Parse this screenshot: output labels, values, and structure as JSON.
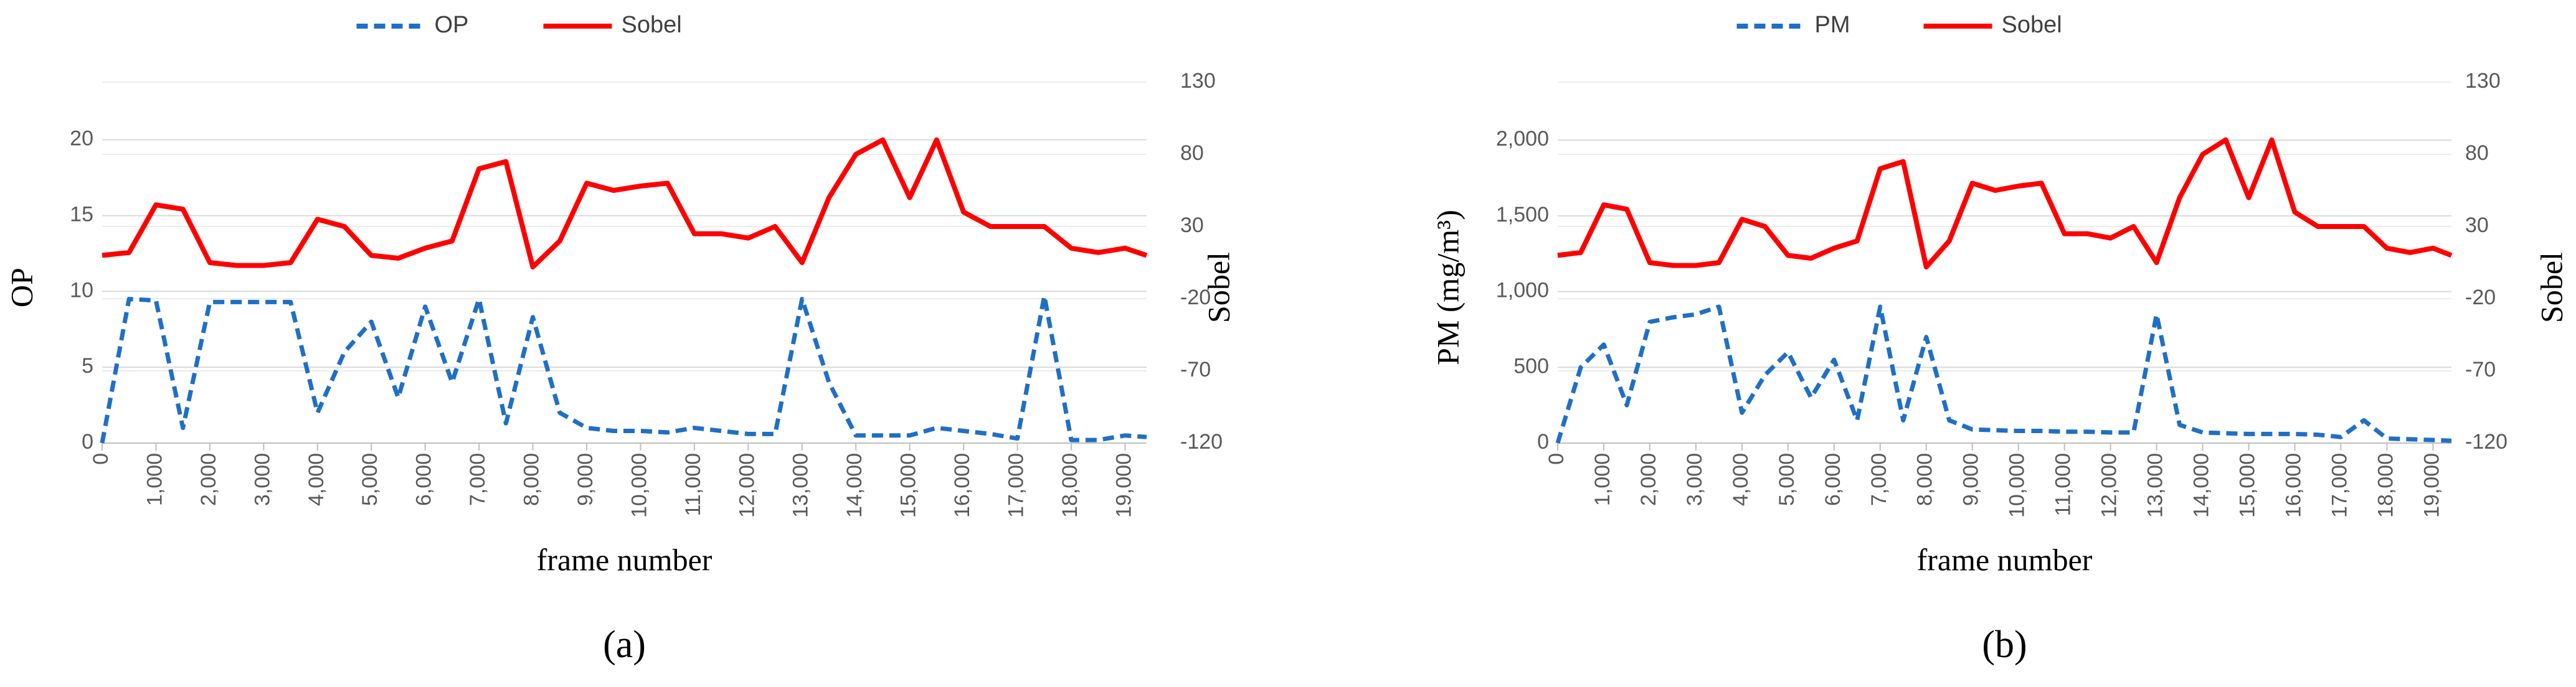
{
  "chart_data": [
    {
      "type": "line",
      "caption": "(a)",
      "xlabel": "frame number",
      "ylabel": "OP",
      "y2label": "Sobel",
      "x": [
        0,
        500,
        1000,
        1500,
        2000,
        2500,
        3000,
        3500,
        4000,
        4500,
        5000,
        5500,
        6000,
        6500,
        7000,
        7500,
        8000,
        8500,
        9000,
        9500,
        10000,
        10500,
        11000,
        11500,
        12000,
        12500,
        13000,
        13500,
        14000,
        14500,
        15000,
        15500,
        16000,
        16500,
        17000,
        17500,
        18000,
        18500,
        19000,
        19400
      ],
      "series": [
        {
          "name": "OP",
          "color": "#1f6fc5",
          "line_style": "dashed",
          "axis": "y",
          "values": [
            0,
            9.5,
            9.4,
            1,
            9.3,
            9.3,
            9.3,
            9.3,
            2,
            6,
            8,
            3,
            9,
            4,
            9.5,
            1.3,
            8.3,
            2,
            1,
            0.8,
            0.8,
            0.7,
            1,
            0.8,
            0.6,
            0.6,
            9.5,
            4,
            0.5,
            0.5,
            0.5,
            1,
            0.8,
            0.6,
            0.3,
            9.7,
            0.2,
            0.2,
            0.5,
            0.4
          ]
        },
        {
          "name": "Sobel",
          "color": "#ff0000",
          "line_style": "solid",
          "axis": "y2",
          "values": [
            10,
            12,
            45,
            42,
            5,
            3,
            3,
            5,
            35,
            30,
            10,
            8,
            15,
            20,
            70,
            75,
            2,
            20,
            60,
            55,
            58,
            60,
            25,
            25,
            22,
            30,
            5,
            50,
            80,
            90,
            50,
            90,
            40,
            30,
            30,
            30,
            15,
            12,
            15,
            10
          ]
        }
      ],
      "xlim": [
        0,
        19400
      ],
      "xticks": [
        0,
        {
          "value": 1000,
          "label": "1,000"
        },
        {
          "value": 2000,
          "label": "2,000"
        },
        {
          "value": 3000,
          "label": "3,000"
        },
        {
          "value": 4000,
          "label": "4,000"
        },
        {
          "value": 5000,
          "label": "5,000"
        },
        {
          "value": 6000,
          "label": "6,000"
        },
        {
          "value": 7000,
          "label": "7,000"
        },
        {
          "value": 8000,
          "label": "8,000"
        },
        {
          "value": 9000,
          "label": "9,000"
        },
        {
          "value": 10000,
          "label": "10,000"
        },
        {
          "value": 11000,
          "label": "11,000"
        },
        {
          "value": 12000,
          "label": "12,000"
        },
        {
          "value": 13000,
          "label": "13,000"
        },
        {
          "value": 14000,
          "label": "14,000"
        },
        {
          "value": 15000,
          "label": "15,000"
        },
        {
          "value": 16000,
          "label": "16,000"
        },
        {
          "value": 17000,
          "label": "17,000"
        },
        {
          "value": 18000,
          "label": "18,000"
        },
        {
          "value": 19000,
          "label": "19,000"
        }
      ],
      "ylim": [
        0,
        23.8
      ],
      "yticks": [
        0,
        5,
        10,
        15,
        20
      ],
      "y2lim": [
        -120,
        130
      ],
      "y2ticks": [
        -120,
        -70,
        -20,
        30,
        80,
        130
      ],
      "grid": true,
      "legend": "top"
    },
    {
      "type": "line",
      "caption": "(b)",
      "xlabel": "frame number",
      "ylabel": "PM (mg/m³)",
      "y2label": "Sobel",
      "x": [
        0,
        500,
        1000,
        1500,
        2000,
        2500,
        3000,
        3500,
        4000,
        4500,
        5000,
        5500,
        6000,
        6500,
        7000,
        7500,
        8000,
        8500,
        9000,
        9500,
        10000,
        10500,
        11000,
        11500,
        12000,
        12500,
        13000,
        13500,
        14000,
        14500,
        15000,
        15500,
        16000,
        16500,
        17000,
        17500,
        18000,
        18500,
        19000,
        19400
      ],
      "series": [
        {
          "name": "PM",
          "color": "#1f6fc5",
          "line_style": "dashed",
          "axis": "y",
          "values": [
            0,
            500,
            650,
            250,
            800,
            830,
            850,
            900,
            200,
            450,
            600,
            300,
            550,
            150,
            900,
            150,
            700,
            150,
            90,
            85,
            80,
            80,
            75,
            75,
            70,
            70,
            850,
            120,
            70,
            65,
            60,
            60,
            60,
            55,
            40,
            150,
            30,
            25,
            20,
            15
          ]
        },
        {
          "name": "Sobel",
          "color": "#ff0000",
          "line_style": "solid",
          "axis": "y2",
          "values": [
            10,
            12,
            45,
            42,
            5,
            3,
            3,
            5,
            35,
            30,
            10,
            8,
            15,
            20,
            70,
            75,
            2,
            20,
            60,
            55,
            58,
            60,
            25,
            25,
            22,
            30,
            5,
            50,
            80,
            90,
            50,
            90,
            40,
            30,
            30,
            30,
            15,
            12,
            15,
            10
          ]
        }
      ],
      "xlim": [
        0,
        19400
      ],
      "xticks": [
        0,
        {
          "value": 1000,
          "label": "1,000"
        },
        {
          "value": 2000,
          "label": "2,000"
        },
        {
          "value": 3000,
          "label": "3,000"
        },
        {
          "value": 4000,
          "label": "4,000"
        },
        {
          "value": 5000,
          "label": "5,000"
        },
        {
          "value": 6000,
          "label": "6,000"
        },
        {
          "value": 7000,
          "label": "7,000"
        },
        {
          "value": 8000,
          "label": "8,000"
        },
        {
          "value": 9000,
          "label": "9,000"
        },
        {
          "value": 10000,
          "label": "10,000"
        },
        {
          "value": 11000,
          "label": "11,000"
        },
        {
          "value": 12000,
          "label": "12,000"
        },
        {
          "value": 13000,
          "label": "13,000"
        },
        {
          "value": 14000,
          "label": "14,000"
        },
        {
          "value": 15000,
          "label": "15,000"
        },
        {
          "value": 16000,
          "label": "16,000"
        },
        {
          "value": 17000,
          "label": "17,000"
        },
        {
          "value": 18000,
          "label": "18,000"
        },
        {
          "value": 19000,
          "label": "19,000"
        }
      ],
      "ylim": [
        0,
        2383
      ],
      "yticks": [
        0,
        500,
        {
          "value": 1000,
          "label": "1,000"
        },
        {
          "value": 1500,
          "label": "1,500"
        },
        {
          "value": 2000,
          "label": "2,000"
        }
      ],
      "y2lim": [
        -120,
        130
      ],
      "y2ticks": [
        -120,
        -70,
        -20,
        30,
        80,
        130
      ],
      "grid": true,
      "legend": "top"
    }
  ]
}
